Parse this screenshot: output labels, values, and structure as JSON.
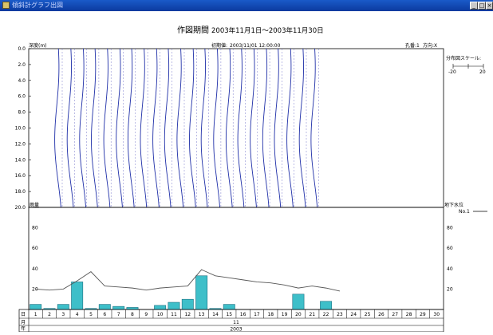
{
  "window": {
    "title": "傾斜計グラフ出図",
    "min_glyph": "_",
    "max_glyph": "□",
    "close_glyph": "×"
  },
  "header": {
    "period_label": "作図期間",
    "period": "2003年11月1日〜2003年11月30日",
    "initial_label": "初期値:",
    "initial_value": "2003/11/01 12:00:00",
    "hole_label": "孔番:1",
    "direction_label": "方向:X"
  },
  "chart_data": [
    {
      "type": "line",
      "name": "inclinometer-profiles",
      "ylabel": "深度(m)",
      "y_ticks": [
        "0.0",
        "2.0",
        "4.0",
        "6.0",
        "8.0",
        "10.0",
        "12.0",
        "14.0",
        "16.0",
        "18.0",
        "20.0"
      ],
      "ylim": [
        0,
        20
      ],
      "profile_count": 22,
      "line_color": "#1f2fa8",
      "baseline_color": "#7a7acc",
      "scale_label": "分布図スケール:",
      "scale_min": "-20",
      "scale_max": "20"
    },
    {
      "type": "bar",
      "name": "rainfall-groundwater",
      "ylabel_left": "雨量",
      "ylabel_right": "地下水位",
      "legend_label": "No.1",
      "y_ticks": [
        "20",
        "40",
        "60",
        "80"
      ],
      "ylim": [
        0,
        100
      ],
      "bar_color": "#3ebfc9",
      "days": [
        "1",
        "2",
        "3",
        "4",
        "5",
        "6",
        "7",
        "8",
        "9",
        "10",
        "11",
        "12",
        "13",
        "14",
        "15",
        "16",
        "17",
        "18",
        "19",
        "20",
        "21",
        "22",
        "23",
        "24",
        "25",
        "26",
        "27",
        "28",
        "29",
        "30"
      ],
      "rainfall": [
        5,
        1,
        5,
        27,
        1,
        5,
        3,
        2,
        0,
        4,
        7,
        10,
        33,
        1,
        5,
        0,
        0,
        0,
        0,
        15,
        0,
        8,
        0,
        0,
        0,
        0,
        0,
        0,
        0,
        0
      ],
      "groundwater": [
        20,
        19,
        20,
        28,
        37,
        23,
        22,
        21,
        19,
        21,
        22,
        23,
        39,
        33,
        31,
        29,
        27,
        26,
        24,
        21,
        23,
        21,
        18,
        null,
        null,
        null,
        null,
        null,
        null,
        null
      ],
      "row_labels": {
        "day": "日",
        "month": "月",
        "year": "年"
      },
      "month": "11",
      "year": "2003"
    }
  ]
}
